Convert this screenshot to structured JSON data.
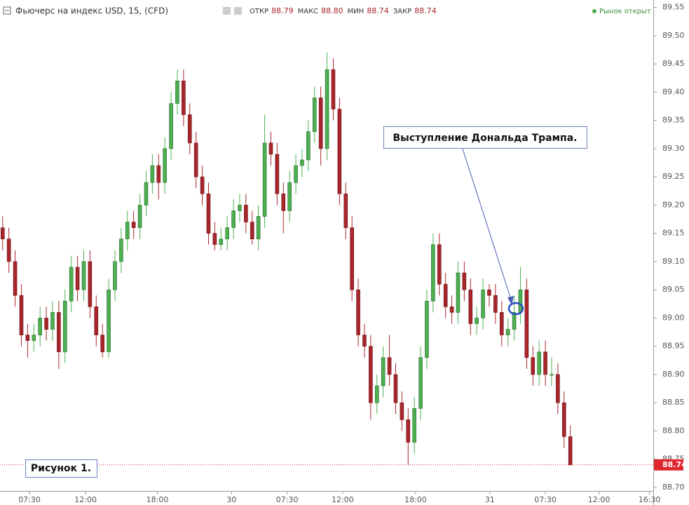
{
  "chart_data": {
    "type": "candlestick",
    "title": "Фьючерс на индекс USD, 15, (CFD)",
    "quote": [
      {
        "label": "ОТКР",
        "value": "88.79"
      },
      {
        "label": "МАКС",
        "value": "88.80"
      },
      {
        "label": "МИН",
        "value": "88.74"
      },
      {
        "label": "ЗАКР",
        "value": "88.74"
      }
    ],
    "market_status": "Рынок открыт",
    "annotations": [
      "Выступление Дональда Трампа.",
      "Рисунок 1."
    ],
    "last_price": {
      "value": 88.74,
      "label": "88.74"
    },
    "up_color": "#4caf50",
    "down_color": "#a8262b",
    "last_color": "#e0262d",
    "grid": false,
    "ylim": [
      88.695,
      89.557
    ],
    "yticks": [
      {
        "value": 88.7,
        "label": "88.70"
      },
      {
        "value": 88.75,
        "label": "88.75"
      },
      {
        "value": 88.8,
        "label": "88.80"
      },
      {
        "value": 88.85,
        "label": "88.85"
      },
      {
        "value": 88.9,
        "label": "88.90"
      },
      {
        "value": 88.95,
        "label": "88.95"
      },
      {
        "value": 89.0,
        "label": "89.00"
      },
      {
        "value": 89.05,
        "label": "89.05"
      },
      {
        "value": 89.1,
        "label": "89.10"
      },
      {
        "value": 89.15,
        "label": "89.15"
      },
      {
        "value": 89.2,
        "label": "89.20"
      },
      {
        "value": 89.25,
        "label": "89.25"
      },
      {
        "value": 89.3,
        "label": "89.30"
      },
      {
        "value": 89.35,
        "label": "89.35"
      },
      {
        "value": 89.4,
        "label": "89.40"
      },
      {
        "value": 89.45,
        "label": "89.45"
      },
      {
        "value": 89.5,
        "label": "89.50"
      },
      {
        "value": 89.55,
        "label": "89.55"
      }
    ],
    "xlim": [
      -0.2,
      104.3
    ],
    "xticks": [
      {
        "value": 4.3,
        "label": "07:30"
      },
      {
        "value": 13.3,
        "label": "12:00"
      },
      {
        "value": 24.8,
        "label": "18:00"
      },
      {
        "value": 36.7,
        "label": "30"
      },
      {
        "value": 45.6,
        "label": "07:30"
      },
      {
        "value": 54.5,
        "label": "12:00"
      },
      {
        "value": 66.2,
        "label": "18:00"
      },
      {
        "value": 78.1,
        "label": "31"
      },
      {
        "value": 87.0,
        "label": "07:30"
      },
      {
        "value": 95.6,
        "label": "12:00"
      },
      {
        "value": 103.7,
        "label": "16:30"
      }
    ],
    "candles": [
      [
        89.16,
        89.18,
        89.12,
        89.14
      ],
      [
        89.14,
        89.16,
        89.08,
        89.1
      ],
      [
        89.1,
        89.12,
        89.02,
        89.04
      ],
      [
        89.04,
        89.06,
        88.95,
        88.97
      ],
      [
        88.97,
        88.99,
        88.93,
        88.96
      ],
      [
        88.96,
        88.99,
        88.94,
        88.97
      ],
      [
        88.97,
        89.02,
        88.95,
        89.0
      ],
      [
        89.0,
        89.02,
        88.96,
        88.98
      ],
      [
        88.98,
        89.03,
        88.96,
        89.01
      ],
      [
        89.01,
        89.03,
        88.91,
        88.94
      ],
      [
        88.94,
        89.05,
        88.92,
        89.03
      ],
      [
        89.03,
        89.11,
        89.01,
        89.09
      ],
      [
        89.09,
        89.11,
        89.03,
        89.05
      ],
      [
        89.05,
        89.12,
        89.03,
        89.1
      ],
      [
        89.1,
        89.12,
        89.0,
        89.02
      ],
      [
        89.02,
        89.04,
        88.95,
        88.97
      ],
      [
        88.97,
        88.99,
        88.93,
        88.94
      ],
      [
        88.94,
        89.07,
        88.93,
        89.05
      ],
      [
        89.05,
        89.12,
        89.03,
        89.1
      ],
      [
        89.1,
        89.16,
        89.08,
        89.14
      ],
      [
        89.14,
        89.19,
        89.12,
        89.17
      ],
      [
        89.17,
        89.19,
        89.14,
        89.16
      ],
      [
        89.16,
        89.22,
        89.14,
        89.2
      ],
      [
        89.2,
        89.26,
        89.18,
        89.24
      ],
      [
        89.24,
        89.29,
        89.22,
        89.27
      ],
      [
        89.27,
        89.29,
        89.21,
        89.24
      ],
      [
        89.24,
        89.32,
        89.22,
        89.3
      ],
      [
        89.3,
        89.4,
        89.28,
        89.38
      ],
      [
        89.38,
        89.44,
        89.36,
        89.42
      ],
      [
        89.42,
        89.44,
        89.34,
        89.36
      ],
      [
        89.36,
        89.38,
        89.29,
        89.31
      ],
      [
        89.31,
        89.33,
        89.23,
        89.25
      ],
      [
        89.25,
        89.27,
        89.2,
        89.22
      ],
      [
        89.22,
        89.24,
        89.13,
        89.15
      ],
      [
        89.15,
        89.17,
        89.12,
        89.13
      ],
      [
        89.13,
        89.16,
        89.12,
        89.14
      ],
      [
        89.14,
        89.18,
        89.12,
        89.16
      ],
      [
        89.16,
        89.21,
        89.14,
        89.19
      ],
      [
        89.19,
        89.22,
        89.17,
        89.2
      ],
      [
        89.2,
        89.22,
        89.15,
        89.17
      ],
      [
        89.17,
        89.19,
        89.13,
        89.14
      ],
      [
        89.14,
        89.2,
        89.12,
        89.18
      ],
      [
        89.18,
        89.36,
        89.16,
        89.31
      ],
      [
        89.31,
        89.33,
        89.27,
        89.29
      ],
      [
        89.29,
        89.31,
        89.2,
        89.22
      ],
      [
        89.22,
        89.24,
        89.15,
        89.19
      ],
      [
        89.19,
        89.26,
        89.17,
        89.24
      ],
      [
        89.24,
        89.29,
        89.22,
        89.27
      ],
      [
        89.27,
        89.3,
        89.25,
        89.28
      ],
      [
        89.28,
        89.35,
        89.26,
        89.33
      ],
      [
        89.33,
        89.41,
        89.31,
        89.39
      ],
      [
        89.39,
        89.41,
        89.27,
        89.3
      ],
      [
        89.3,
        89.47,
        89.28,
        89.44
      ],
      [
        89.44,
        89.46,
        89.35,
        89.37
      ],
      [
        89.37,
        89.39,
        89.2,
        89.22
      ],
      [
        89.22,
        89.24,
        89.14,
        89.16
      ],
      [
        89.16,
        89.18,
        89.03,
        89.05
      ],
      [
        89.05,
        89.07,
        88.95,
        88.97
      ],
      [
        88.97,
        88.99,
        88.93,
        88.95
      ],
      [
        88.95,
        88.97,
        88.82,
        88.85
      ],
      [
        88.85,
        88.9,
        88.83,
        88.88
      ],
      [
        88.88,
        88.95,
        88.86,
        88.93
      ],
      [
        88.93,
        88.97,
        88.88,
        88.9
      ],
      [
        88.9,
        88.92,
        88.83,
        88.85
      ],
      [
        88.85,
        88.87,
        88.8,
        88.82
      ],
      [
        88.82,
        88.84,
        88.74,
        88.78
      ],
      [
        88.78,
        88.86,
        88.76,
        88.84
      ],
      [
        88.84,
        88.95,
        88.82,
        88.93
      ],
      [
        88.93,
        89.05,
        88.91,
        89.03
      ],
      [
        89.03,
        89.15,
        89.01,
        89.13
      ],
      [
        89.13,
        89.15,
        89.04,
        89.06
      ],
      [
        89.06,
        89.08,
        89.0,
        89.02
      ],
      [
        89.02,
        89.04,
        88.99,
        89.01
      ],
      [
        89.01,
        89.1,
        88.99,
        89.08
      ],
      [
        89.08,
        89.1,
        89.03,
        89.05
      ],
      [
        89.05,
        89.07,
        88.97,
        88.99
      ],
      [
        88.99,
        89.02,
        88.97,
        89.0
      ],
      [
        89.0,
        89.07,
        88.98,
        89.05
      ],
      [
        89.05,
        89.06,
        89.02,
        89.04
      ],
      [
        89.04,
        89.06,
        88.99,
        89.01
      ],
      [
        89.01,
        89.03,
        88.95,
        88.97
      ],
      [
        88.97,
        89.0,
        88.95,
        88.98
      ],
      [
        88.98,
        89.04,
        88.96,
        89.01
      ],
      [
        89.01,
        89.09,
        88.99,
        89.05
      ],
      [
        89.05,
        89.07,
        88.91,
        88.93
      ],
      [
        88.93,
        88.95,
        88.88,
        88.9
      ],
      [
        88.9,
        88.96,
        88.88,
        88.94
      ],
      [
        88.94,
        88.96,
        88.88,
        88.9
      ],
      [
        88.9,
        88.93,
        88.88,
        88.9
      ],
      [
        88.9,
        88.92,
        88.83,
        88.85
      ],
      [
        88.85,
        88.87,
        88.77,
        88.79
      ],
      [
        88.79,
        88.81,
        88.74,
        88.74
      ]
    ]
  }
}
